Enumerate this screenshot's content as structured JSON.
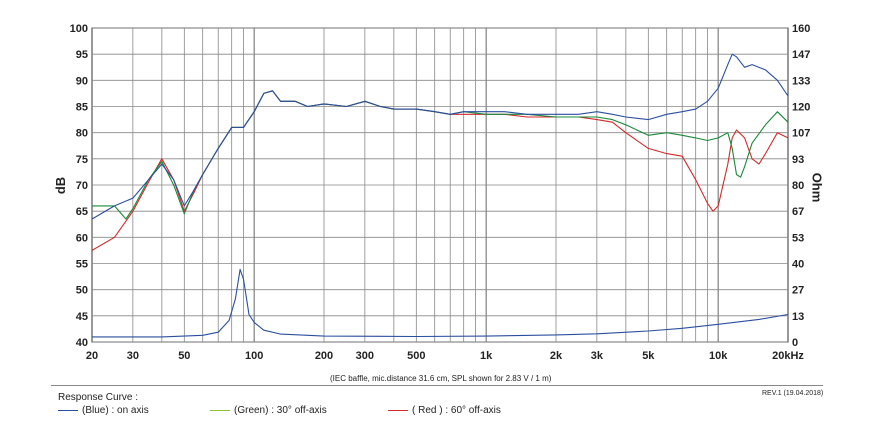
{
  "chart_data": {
    "type": "line",
    "title": "",
    "ylabel_left": "dB",
    "ylabel_right": "Ohm",
    "x_scale": "log",
    "xlim": [
      20,
      20000
    ],
    "ylim_left": [
      40,
      100
    ],
    "ylim_right": [
      0,
      160
    ],
    "x_ticks": [
      {
        "v": 20,
        "t": "20"
      },
      {
        "v": 30,
        "t": "30"
      },
      {
        "v": 50,
        "t": "50"
      },
      {
        "v": 100,
        "t": "100"
      },
      {
        "v": 200,
        "t": "200"
      },
      {
        "v": 300,
        "t": "300"
      },
      {
        "v": 500,
        "t": "500"
      },
      {
        "v": 1000,
        "t": "1k"
      },
      {
        "v": 2000,
        "t": "2k"
      },
      {
        "v": 3000,
        "t": "3k"
      },
      {
        "v": 5000,
        "t": "5k"
      },
      {
        "v": 10000,
        "t": "10k"
      },
      {
        "v": 20000,
        "t": "20kHz"
      }
    ],
    "y_ticks_left": [
      "40",
      "45",
      "50",
      "55",
      "60",
      "65",
      "70",
      "75",
      "80",
      "85",
      "90",
      "95",
      "100"
    ],
    "y_ticks_right": [
      "0",
      "13",
      "27",
      "40",
      "53",
      "67",
      "80",
      "93",
      "107",
      "120",
      "133",
      "147",
      "160"
    ],
    "grid": true,
    "series": [
      {
        "name": "(Blue) : on axis",
        "color": "#2b4fa0",
        "axis": "left",
        "points": [
          [
            20,
            63.5
          ],
          [
            25,
            66
          ],
          [
            30,
            67.5
          ],
          [
            35,
            71
          ],
          [
            40,
            74
          ],
          [
            45,
            71
          ],
          [
            50,
            66
          ],
          [
            55,
            69
          ],
          [
            60,
            72
          ],
          [
            70,
            77
          ],
          [
            80,
            81
          ],
          [
            90,
            81
          ],
          [
            100,
            84
          ],
          [
            110,
            87.5
          ],
          [
            120,
            88
          ],
          [
            130,
            86
          ],
          [
            150,
            86
          ],
          [
            170,
            85
          ],
          [
            200,
            85.5
          ],
          [
            250,
            85
          ],
          [
            300,
            86
          ],
          [
            350,
            85
          ],
          [
            400,
            84.5
          ],
          [
            500,
            84.5
          ],
          [
            600,
            84
          ],
          [
            700,
            83.5
          ],
          [
            800,
            84
          ],
          [
            1000,
            84
          ],
          [
            1200,
            84
          ],
          [
            1500,
            83.5
          ],
          [
            2000,
            83.5
          ],
          [
            2500,
            83.5
          ],
          [
            3000,
            84
          ],
          [
            3500,
            83.5
          ],
          [
            4000,
            83
          ],
          [
            5000,
            82.5
          ],
          [
            6000,
            83.5
          ],
          [
            7000,
            84
          ],
          [
            8000,
            84.5
          ],
          [
            9000,
            86
          ],
          [
            10000,
            88.5
          ],
          [
            11000,
            93
          ],
          [
            11500,
            95
          ],
          [
            12000,
            94.5
          ],
          [
            13000,
            92.5
          ],
          [
            14000,
            93
          ],
          [
            16000,
            92
          ],
          [
            18000,
            90
          ],
          [
            20000,
            87
          ]
        ]
      },
      {
        "name": "(Green) : 30° off-axis",
        "color": "#1a8a3a",
        "axis": "left",
        "points": [
          [
            20,
            66
          ],
          [
            25,
            66
          ],
          [
            28,
            63.5
          ],
          [
            30,
            65.5
          ],
          [
            35,
            71
          ],
          [
            40,
            74.5
          ],
          [
            45,
            70
          ],
          [
            50,
            64.5
          ],
          [
            55,
            69
          ],
          [
            60,
            72
          ],
          [
            70,
            77
          ],
          [
            80,
            81
          ],
          [
            90,
            81
          ],
          [
            100,
            84
          ],
          [
            110,
            87.5
          ],
          [
            120,
            88
          ],
          [
            130,
            86
          ],
          [
            150,
            86
          ],
          [
            170,
            85
          ],
          [
            200,
            85.5
          ],
          [
            250,
            85
          ],
          [
            300,
            86
          ],
          [
            350,
            85
          ],
          [
            400,
            84.5
          ],
          [
            500,
            84.5
          ],
          [
            600,
            84
          ],
          [
            700,
            83.5
          ],
          [
            800,
            84
          ],
          [
            1000,
            83.5
          ],
          [
            1200,
            83.5
          ],
          [
            1500,
            83.5
          ],
          [
            2000,
            83
          ],
          [
            2500,
            83
          ],
          [
            3000,
            83
          ],
          [
            3500,
            82.5
          ],
          [
            4000,
            81.5
          ],
          [
            5000,
            79.5
          ],
          [
            6000,
            80
          ],
          [
            7000,
            79.5
          ],
          [
            8000,
            79
          ],
          [
            9000,
            78.5
          ],
          [
            10000,
            79
          ],
          [
            11000,
            80
          ],
          [
            11500,
            77
          ],
          [
            12000,
            72
          ],
          [
            12500,
            71.5
          ],
          [
            13000,
            73.5
          ],
          [
            14000,
            78
          ],
          [
            16000,
            81.5
          ],
          [
            18000,
            84
          ],
          [
            20000,
            82
          ]
        ]
      },
      {
        "name": "( Red ) : 60° off-axis",
        "color": "#d42a2a",
        "axis": "left",
        "points": [
          [
            20,
            57.5
          ],
          [
            25,
            60
          ],
          [
            30,
            65
          ],
          [
            35,
            70.5
          ],
          [
            40,
            75
          ],
          [
            45,
            71
          ],
          [
            50,
            65
          ],
          [
            55,
            68.5
          ],
          [
            60,
            72
          ],
          [
            70,
            77
          ],
          [
            80,
            81
          ],
          [
            90,
            81
          ],
          [
            100,
            84
          ],
          [
            110,
            87.5
          ],
          [
            120,
            88
          ],
          [
            130,
            86
          ],
          [
            150,
            86
          ],
          [
            170,
            85
          ],
          [
            200,
            85.5
          ],
          [
            250,
            85
          ],
          [
            300,
            86
          ],
          [
            350,
            85
          ],
          [
            400,
            84.5
          ],
          [
            500,
            84.5
          ],
          [
            600,
            84
          ],
          [
            700,
            83.5
          ],
          [
            800,
            83.5
          ],
          [
            1000,
            83.5
          ],
          [
            1200,
            83.5
          ],
          [
            1500,
            83
          ],
          [
            2000,
            83
          ],
          [
            2500,
            83
          ],
          [
            3000,
            82.5
          ],
          [
            3500,
            82
          ],
          [
            4000,
            80
          ],
          [
            5000,
            77
          ],
          [
            6000,
            76
          ],
          [
            7000,
            75.5
          ],
          [
            8000,
            71
          ],
          [
            9000,
            66.5
          ],
          [
            9500,
            65
          ],
          [
            10000,
            66
          ],
          [
            11000,
            74
          ],
          [
            11500,
            79
          ],
          [
            12000,
            80.5
          ],
          [
            13000,
            79
          ],
          [
            14000,
            75
          ],
          [
            15000,
            74
          ],
          [
            16000,
            76
          ],
          [
            18000,
            80
          ],
          [
            20000,
            79
          ]
        ]
      },
      {
        "name": "Impedance",
        "color": "#2b4fa0",
        "axis": "right",
        "points": [
          [
            20,
            2.6
          ],
          [
            40,
            2.6
          ],
          [
            60,
            3.4
          ],
          [
            70,
            5
          ],
          [
            78,
            11
          ],
          [
            83,
            22
          ],
          [
            87,
            37
          ],
          [
            90,
            32
          ],
          [
            95,
            14
          ],
          [
            100,
            10
          ],
          [
            110,
            6
          ],
          [
            130,
            4
          ],
          [
            200,
            3
          ],
          [
            500,
            2.8
          ],
          [
            1000,
            3
          ],
          [
            2000,
            3.6
          ],
          [
            3000,
            4.2
          ],
          [
            5000,
            5.6
          ],
          [
            7000,
            7
          ],
          [
            10000,
            9
          ],
          [
            15000,
            11.5
          ],
          [
            20000,
            14
          ]
        ]
      }
    ]
  },
  "text": {
    "axis_left_label": "dB",
    "axis_right_label": "Ohm",
    "conditions": "(IEC baffle, mic.distance 31.6 cm, SPL shown for 2.83 V / 1 m)",
    "response_curve_label": "Response Curve :",
    "revision": "REV.1 (19.04.2018)",
    "legend": [
      {
        "label": "(Blue) : on axis",
        "color": "#2b4fa0"
      },
      {
        "label": "(Green) : 30° off-axis",
        "color": "#8cc63f"
      },
      {
        "label": "( Red ) : 60° off-axis",
        "color": "#d42a2a"
      }
    ]
  }
}
